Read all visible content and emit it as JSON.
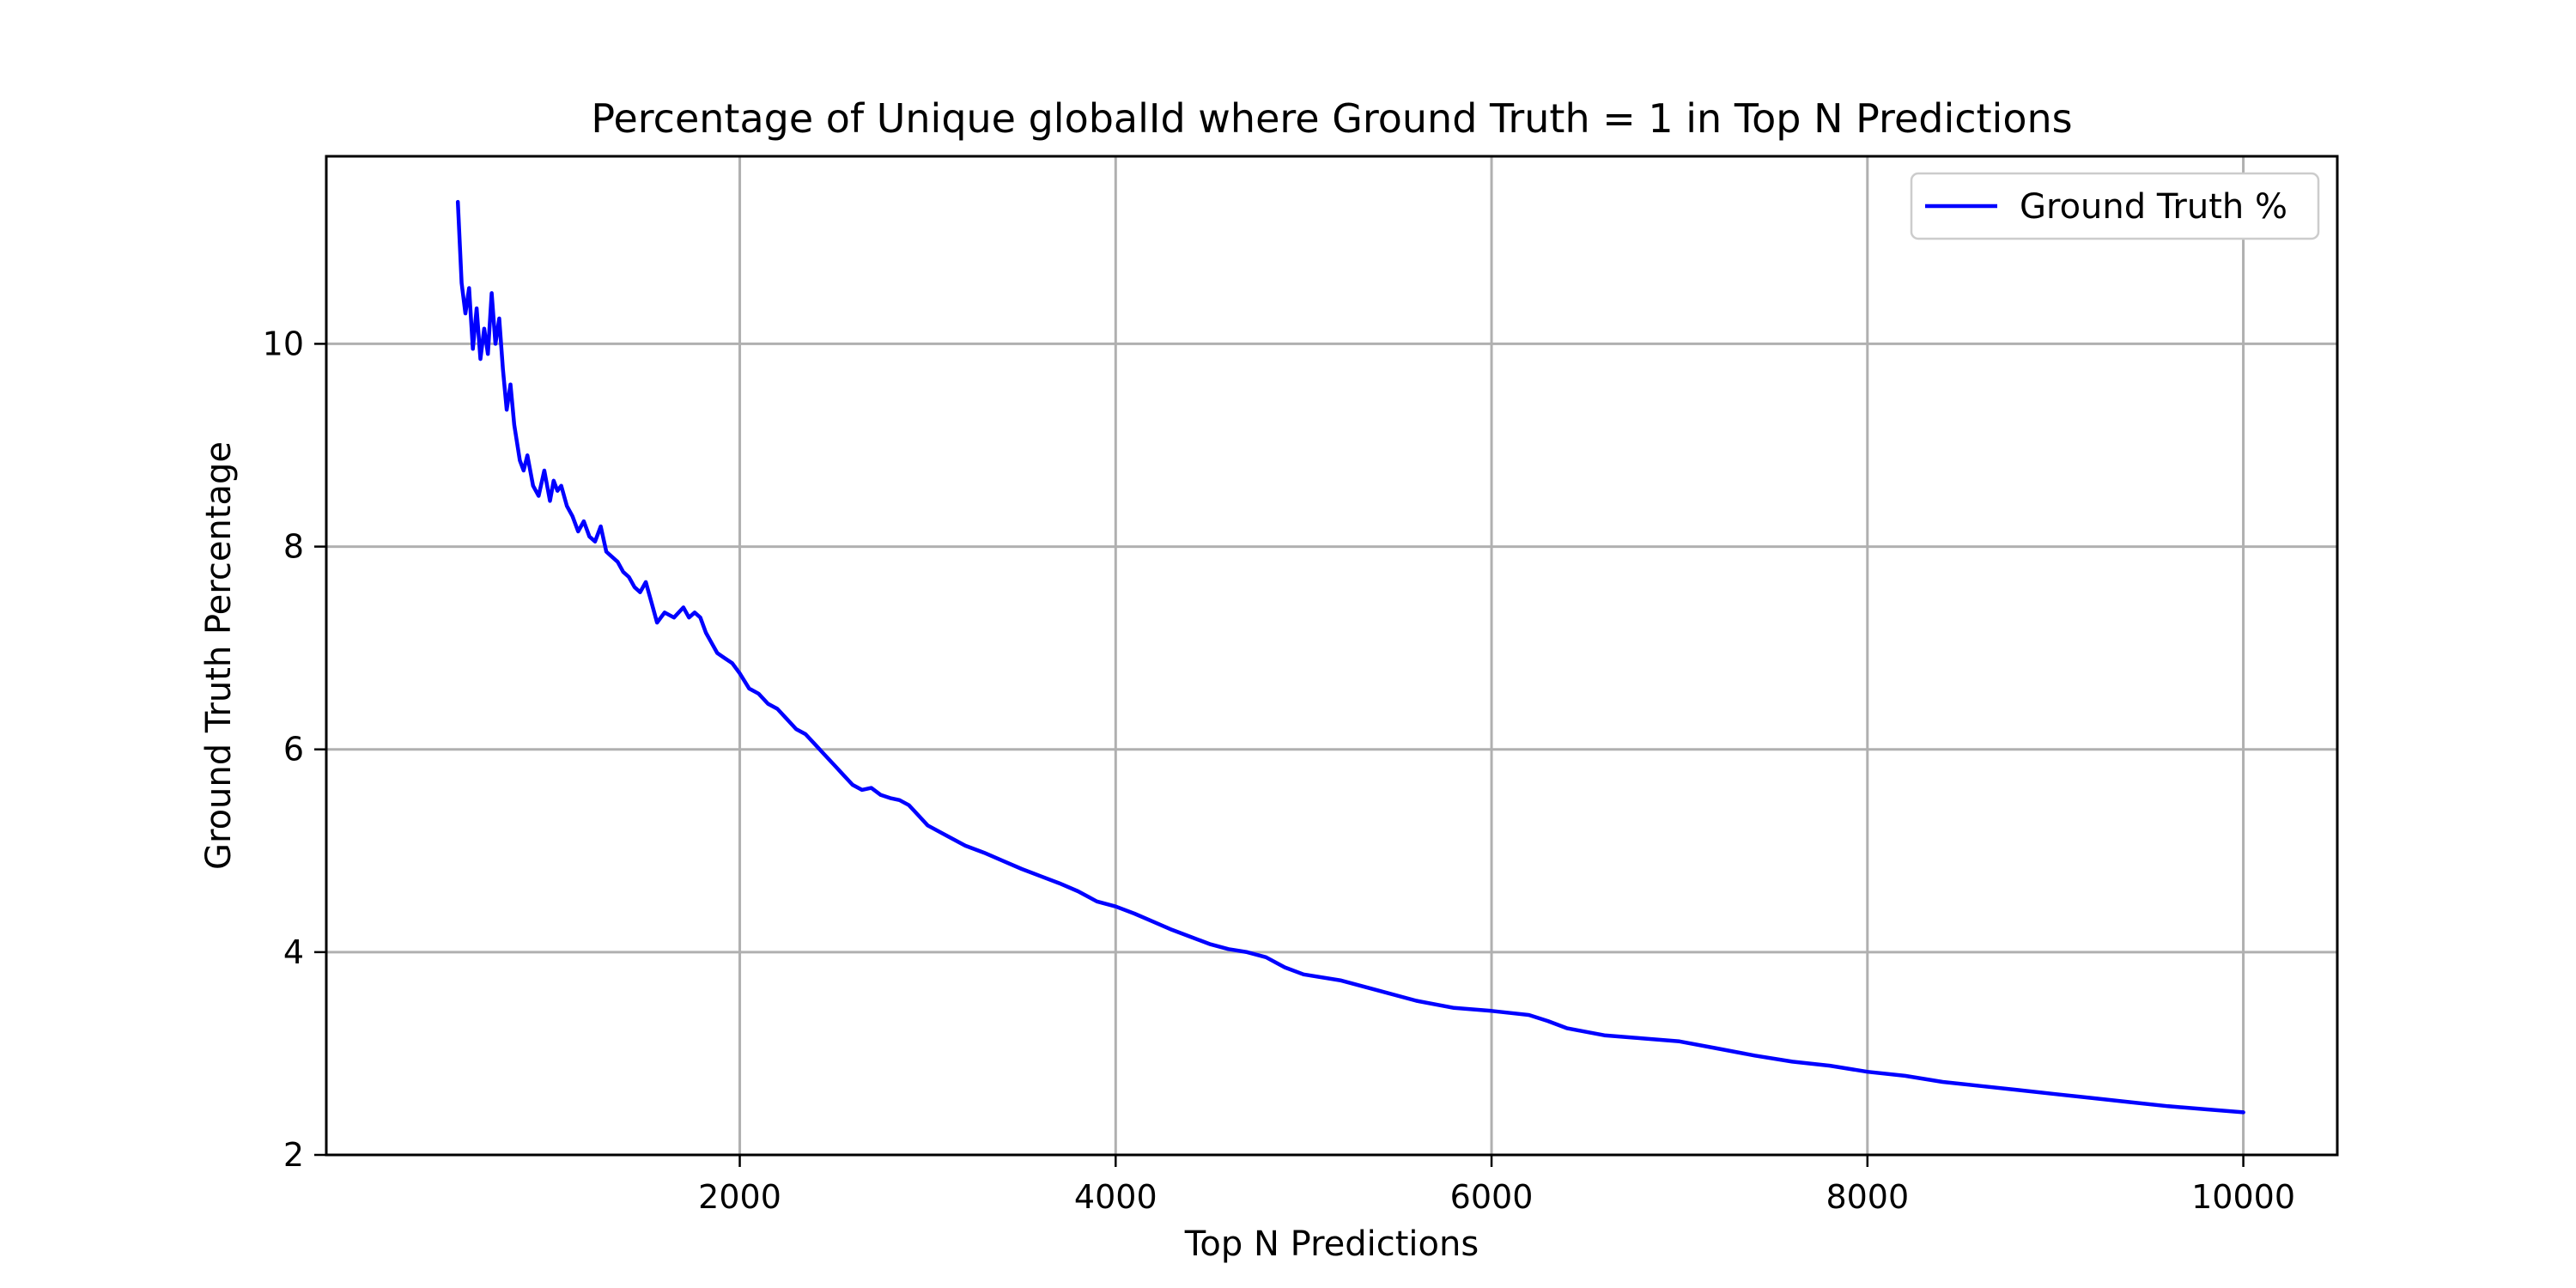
{
  "chart_data": {
    "type": "line",
    "title": "Percentage of Unique globalId where Ground Truth = 1 in Top N Predictions",
    "xlabel": "Top N Predictions",
    "ylabel": "Ground Truth Percentage",
    "xlim": [
      -200,
      10500
    ],
    "ylim": [
      2,
      11.85
    ],
    "xticks": [
      2000,
      4000,
      6000,
      8000,
      10000
    ],
    "yticks": [
      2,
      4,
      6,
      8,
      10
    ],
    "grid": true,
    "legend_position": "top-right",
    "series": [
      {
        "name": "Ground Truth %",
        "color": "#0000ff",
        "x": [
          500,
          520,
          540,
          560,
          580,
          600,
          620,
          640,
          660,
          680,
          700,
          720,
          740,
          760,
          780,
          800,
          830,
          850,
          870,
          900,
          930,
          960,
          990,
          1010,
          1030,
          1050,
          1080,
          1110,
          1140,
          1170,
          1200,
          1230,
          1260,
          1290,
          1320,
          1350,
          1380,
          1410,
          1440,
          1470,
          1500,
          1530,
          1560,
          1600,
          1650,
          1700,
          1730,
          1760,
          1790,
          1820,
          1850,
          1880,
          1920,
          1960,
          2000,
          2050,
          2100,
          2150,
          2200,
          2250,
          2300,
          2350,
          2400,
          2450,
          2500,
          2550,
          2600,
          2650,
          2700,
          2750,
          2800,
          2850,
          2900,
          2950,
          3000,
          3100,
          3200,
          3300,
          3400,
          3500,
          3600,
          3700,
          3800,
          3900,
          4000,
          4100,
          4200,
          4300,
          4400,
          4500,
          4600,
          4700,
          4800,
          4900,
          5000,
          5200,
          5400,
          5600,
          5800,
          6000,
          6100,
          6200,
          6300,
          6400,
          6600,
          6800,
          7000,
          7200,
          7400,
          7600,
          7800,
          8000,
          8200,
          8400,
          8600,
          8800,
          9000,
          9200,
          9400,
          9600,
          9800,
          10000
        ],
        "y": [
          11.4,
          10.6,
          10.3,
          10.55,
          9.95,
          10.35,
          9.85,
          10.15,
          9.9,
          10.5,
          10.0,
          10.25,
          9.75,
          9.35,
          9.6,
          9.2,
          8.85,
          8.75,
          8.9,
          8.6,
          8.5,
          8.75,
          8.45,
          8.65,
          8.55,
          8.6,
          8.4,
          8.3,
          8.15,
          8.25,
          8.1,
          8.05,
          8.2,
          7.95,
          7.9,
          7.85,
          7.75,
          7.7,
          7.6,
          7.55,
          7.65,
          7.45,
          7.25,
          7.35,
          7.3,
          7.4,
          7.3,
          7.35,
          7.3,
          7.15,
          7.05,
          6.95,
          6.9,
          6.85,
          6.75,
          6.6,
          6.55,
          6.45,
          6.4,
          6.3,
          6.2,
          6.15,
          6.05,
          5.95,
          5.85,
          5.75,
          5.65,
          5.6,
          5.62,
          5.55,
          5.52,
          5.5,
          5.45,
          5.35,
          5.25,
          5.15,
          5.05,
          4.98,
          4.9,
          4.82,
          4.75,
          4.68,
          4.6,
          4.5,
          4.45,
          4.38,
          4.3,
          4.22,
          4.15,
          4.08,
          4.03,
          4.0,
          3.95,
          3.85,
          3.78,
          3.72,
          3.62,
          3.52,
          3.45,
          3.42,
          3.4,
          3.38,
          3.32,
          3.25,
          3.18,
          3.15,
          3.12,
          3.05,
          2.98,
          2.92,
          2.88,
          2.82,
          2.78,
          2.72,
          2.68,
          2.64,
          2.6,
          2.56,
          2.52,
          2.48,
          2.45,
          2.42
        ]
      }
    ]
  }
}
